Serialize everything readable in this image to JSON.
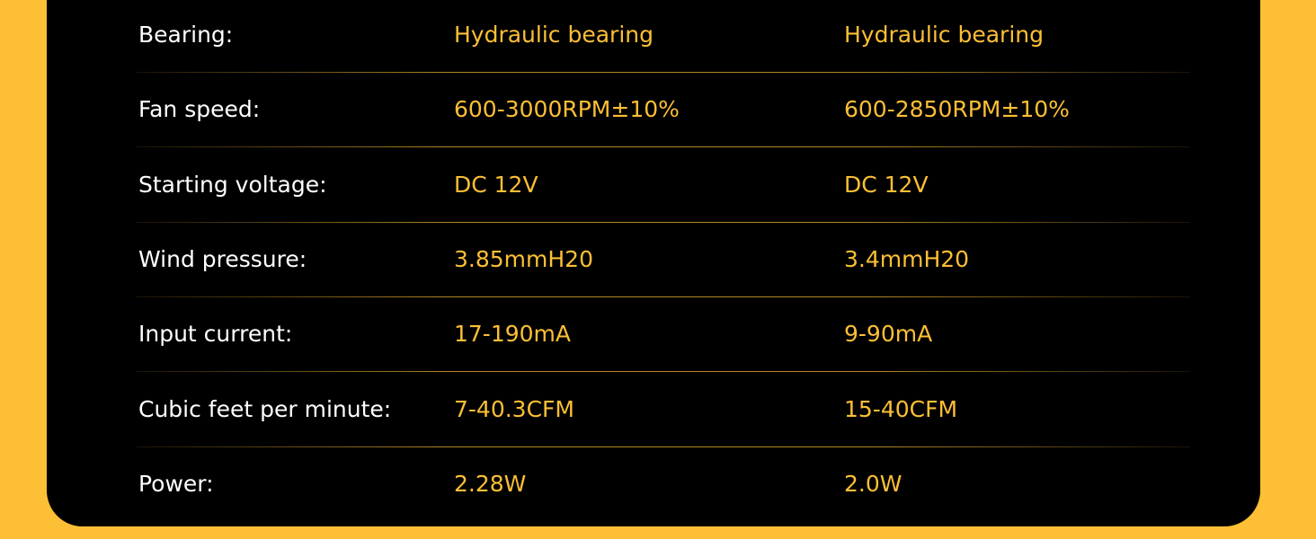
{
  "table": {
    "rows": [
      [
        "Bearing:",
        "Hydraulic bearing",
        "Hydraulic bearing"
      ],
      [
        "Fan speed:",
        "600-3000RPM±10%",
        "600-2850RPM±10%"
      ],
      [
        "Starting voltage:",
        "DC 12V",
        "DC 12V"
      ],
      [
        "Wind pressure:",
        "3.85mmH20",
        "3.4mmH20"
      ],
      [
        "Input current:",
        "17-190mA",
        "9-90mA"
      ],
      [
        "Cubic feet per minute:",
        "7-40.3CFM",
        "15-40CFM"
      ],
      [
        "Power:",
        "2.28W",
        "2.0W"
      ]
    ]
  }
}
